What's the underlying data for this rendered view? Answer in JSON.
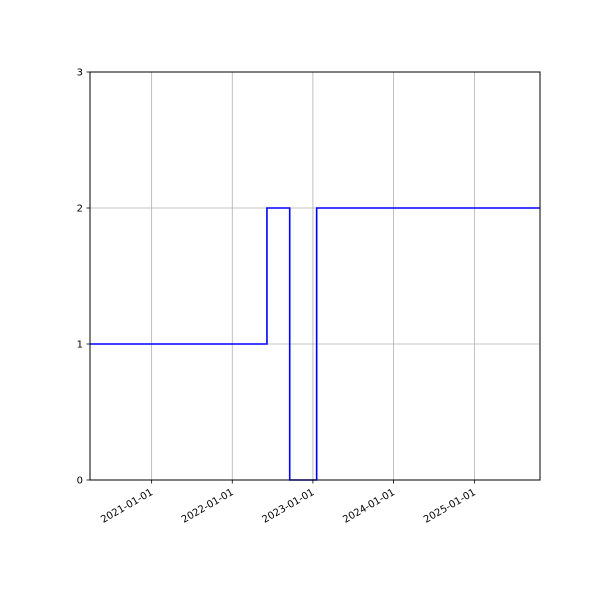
{
  "chart_data": {
    "type": "line",
    "drawstyle": "steps-post",
    "title": "",
    "xlabel": "",
    "ylabel": "",
    "xlim": [
      "2020-03-28",
      "2025-10-25"
    ],
    "ylim": [
      0,
      3
    ],
    "grid": true,
    "x_ticks": [
      "2021-01-01",
      "2022-01-01",
      "2023-01-01",
      "2024-01-01",
      "2025-01-01"
    ],
    "y_ticks": [
      "0",
      "1",
      "2",
      "3"
    ],
    "series": [
      {
        "color": "#0000ff",
        "points": [
          {
            "x": "2020-03-28",
            "y": 1
          },
          {
            "x": "2022-06-07",
            "y": 2
          },
          {
            "x": "2022-09-18",
            "y": 0
          },
          {
            "x": "2023-01-18",
            "y": 2
          },
          {
            "x": "2025-10-25",
            "y": 2
          }
        ]
      }
    ]
  }
}
